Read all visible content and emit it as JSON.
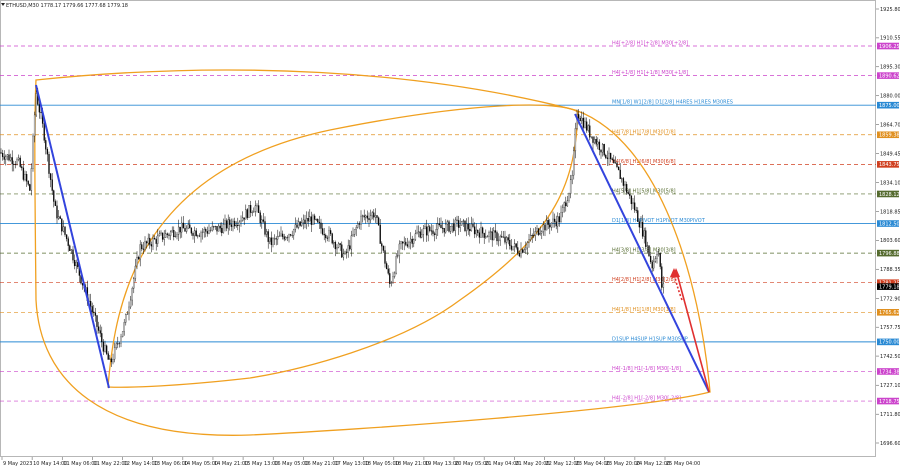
{
  "header": {
    "symbol_info": "ETHUSD,M30  1778.17 1779.66 1777.68 1779.18"
  },
  "chart_data": {
    "type": "candlestick",
    "symbol": "ETHUSD",
    "timeframe": "M30",
    "ohlc_last": {
      "open": 1778.17,
      "high": 1779.66,
      "low": 1777.68,
      "close": 1779.18
    },
    "y_ticks": [
      1925.8,
      1910.55,
      1895.3,
      1880.0,
      1864.7,
      1849.45,
      1834.1,
      1818.85,
      1803.6,
      1788.35,
      1772.9,
      1757.75,
      1742.5,
      1727.1,
      1711.8,
      1696.6
    ],
    "ylim": [
      1690.0,
      1930.0
    ],
    "x_ticks": [
      "9 May 2023",
      "10 May 14:00",
      "11 May 06:00",
      "11 May 22:00",
      "12 May 14:00",
      "13 May 06:00",
      "14 May 05:00",
      "14 May 21:00",
      "15 May 13:00",
      "16 May 05:00",
      "16 May 21:00",
      "17 May 13:00",
      "18 May 05:00",
      "18 May 21:00",
      "19 May 13:00",
      "20 May 05:00",
      "21 May 04:00",
      "21 May 20:00",
      "22 May 12:00",
      "23 May 04:00",
      "23 May 20:00",
      "24 May 12:00",
      "25 May 04:00"
    ],
    "levels": [
      {
        "label": "H4[+2/8] H1[+2/8] M30[+2/8]",
        "price": 1906.25,
        "color": "#cc44cc",
        "style": "dash"
      },
      {
        "label": "H4[+1/8] H1[+1/8] M30[+1/8]",
        "price": 1890.62,
        "color": "#cc44cc",
        "style": "dash"
      },
      {
        "label": "MN[1/8] W1[2/8] D1[2/8] H4RES H1RES M30RES",
        "price": 1875.0,
        "color": "#2a8ad4",
        "style": "solid"
      },
      {
        "label": "H4[7/8] H1[7/8] M30[7/8]",
        "price": 1859.38,
        "color": "#e09020",
        "style": "dash"
      },
      {
        "label": "H4[6/8] H1[6/8] M30[6/8]",
        "price": 1843.75,
        "color": "#d04020",
        "style": "dash"
      },
      {
        "label": "H4[5/8] H1[5/8] M30[5/8]",
        "price": 1828.12,
        "color": "#556b2f",
        "style": "dash"
      },
      {
        "label": "D1[1/8] H4PIVOT H1PIVOT M30PIVOT",
        "price": 1812.5,
        "color": "#2a8ad4",
        "style": "solid"
      },
      {
        "label": "H4[3/8] H1[3/8] M30[3/8]",
        "price": 1796.88,
        "color": "#556b2f",
        "style": "dash"
      },
      {
        "label": "H4[2/8] H1[2/8] M30[2/8]",
        "price": 1781.25,
        "color": "#d04020",
        "style": "dash"
      },
      {
        "label": "H4[1/8] H1[1/8] M30[1/8]",
        "price": 1765.62,
        "color": "#e09020",
        "style": "dash"
      },
      {
        "label": "D1SUP H4SUP H1SUP M30SUP",
        "price": 1750.0,
        "color": "#2a8ad4",
        "style": "solid"
      },
      {
        "label": "H4[-1/8] H1[-1/8] M30[-1/8]",
        "price": 1734.38,
        "color": "#cc44cc",
        "style": "dash"
      },
      {
        "label": "H4[-2/8] H1[-2/8] M30[-2/8]",
        "price": 1718.75,
        "color": "#cc44cc",
        "style": "dash"
      }
    ],
    "price_tags": [
      {
        "price": 1906.25,
        "text": "1906.25",
        "bg": "#cc44cc"
      },
      {
        "price": 1890.62,
        "text": "1890.62",
        "bg": "#cc44cc"
      },
      {
        "price": 1875.0,
        "text": "1875.00",
        "bg": "#2a8ad4"
      },
      {
        "price": 1859.38,
        "text": "1859.38",
        "bg": "#e09020"
      },
      {
        "price": 1843.75,
        "text": "1843.75",
        "bg": "#d04020"
      },
      {
        "price": 1828.12,
        "text": "1828.12",
        "bg": "#556b2f"
      },
      {
        "price": 1812.5,
        "text": "1812.50",
        "bg": "#2a8ad4"
      },
      {
        "price": 1796.88,
        "text": "1796.88",
        "bg": "#556b2f"
      },
      {
        "price": 1781.25,
        "text": "1781.25",
        "bg": "#d04020"
      },
      {
        "price": 1779.18,
        "text": "1779.18",
        "bg": "#000000"
      },
      {
        "price": 1765.62,
        "text": "1765.62",
        "bg": "#e09020"
      },
      {
        "price": 1750.0,
        "text": "1750.00",
        "bg": "#2a8ad4"
      },
      {
        "price": 1734.38,
        "text": "1734.38",
        "bg": "#cc44cc"
      },
      {
        "price": 1718.75,
        "text": "1718.75",
        "bg": "#cc44cc"
      }
    ],
    "colors": {
      "candles": "#000000",
      "trend_lines": "#3344dd",
      "ellipse": "#f0a020",
      "projection_arrow": "#e03030"
    },
    "grid": false
  }
}
